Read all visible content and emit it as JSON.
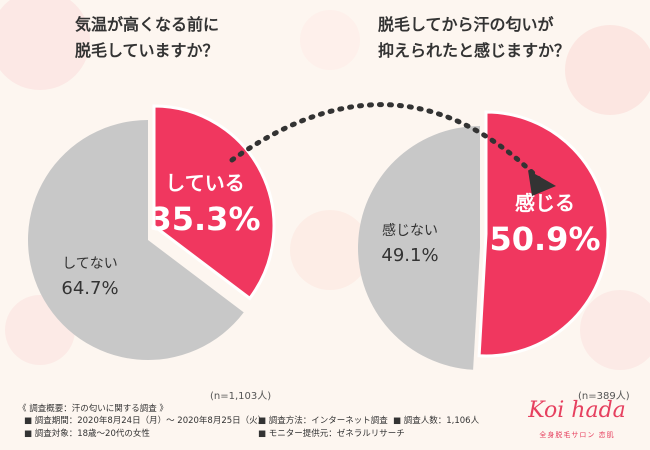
{
  "left": {
    "question": "気温が高くなる前に\n脱毛していますか？",
    "sample": "(n=1,103人)"
  },
  "right": {
    "question": "脱毛してから汗の匂いが\n抑えられたと感じますか？",
    "sample": "(n=389人)"
  },
  "survey": {
    "heading": "《 調査概要：汗の匂いに関する調査 》",
    "period": "■ 調査期間：2020年8月24日（月）～ 2020年8月25日（火）",
    "method": "■ 調査方法：インターネット調査",
    "count": "■ 調査人数：1,106人",
    "target": "■ 調査対象：18歳～20代の女性",
    "provider": "■ モニター提供元：ゼネラルリサーチ"
  },
  "brand": {
    "name": "Koi hada",
    "sub": "全身脱毛サロン 恋肌"
  },
  "colors": {
    "accent": "#f0375f",
    "neutral": "#c8c8c8",
    "arrow": "#333333"
  },
  "chart_data": [
    {
      "type": "pie",
      "title": "気温が高くなる前に脱毛していますか？",
      "slices": [
        {
          "label": "している",
          "value": 35.3,
          "display": "35.3%",
          "color": "#f0375f"
        },
        {
          "label": "してない",
          "value": 64.7,
          "display": "64.7%",
          "color": "#c8c8c8"
        }
      ]
    },
    {
      "type": "pie",
      "title": "脱毛してから汗の匂いが抑えられたと感じますか？",
      "slices": [
        {
          "label": "感じる",
          "value": 50.9,
          "display": "50.9%",
          "color": "#f0375f"
        },
        {
          "label": "感じない",
          "value": 49.1,
          "display": "49.1%",
          "color": "#c8c8c8"
        }
      ]
    }
  ]
}
